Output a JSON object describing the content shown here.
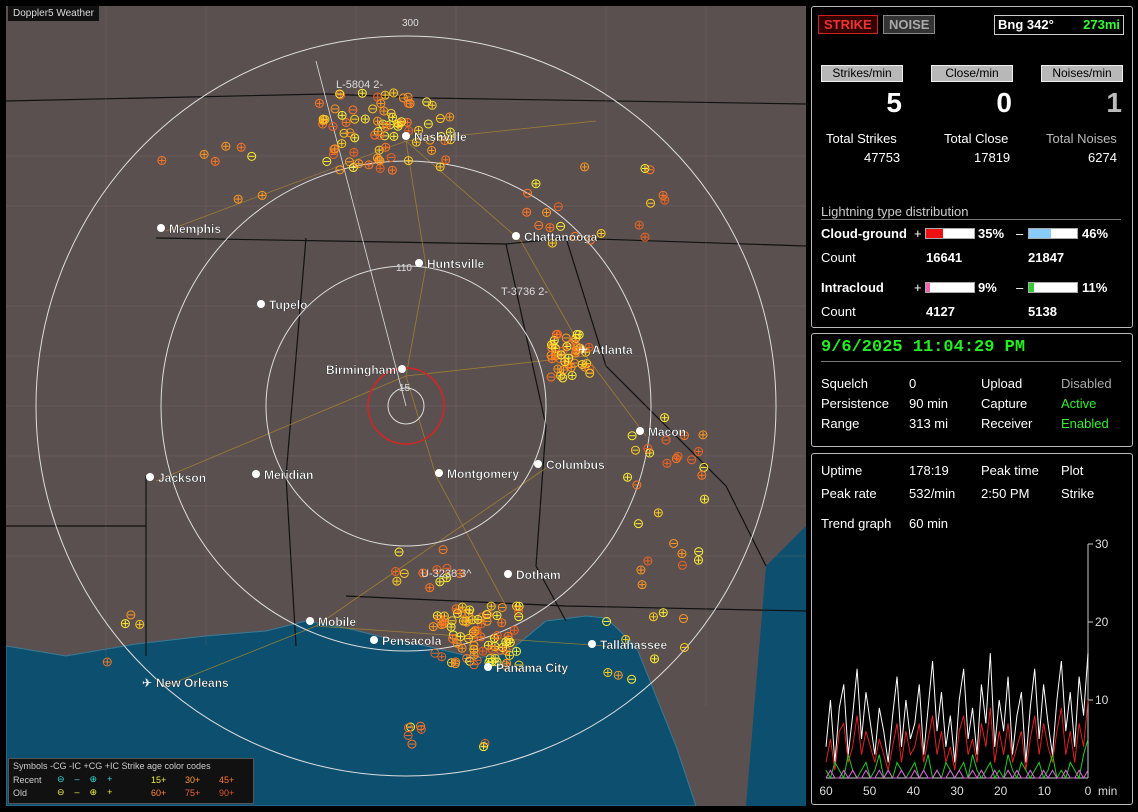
{
  "map": {
    "title": "Doppler5 Weather",
    "range_labels": [
      "300",
      "110",
      "15"
    ],
    "cities": [
      "Nashville",
      "Memphis",
      "Chattanooga",
      "Huntsville",
      "Tupelo",
      "Atlanta",
      "Birmingham",
      "Macon",
      "Jackson",
      "Meridian",
      "Montgomery",
      "Columbus",
      "Dotham",
      "Mobile",
      "Pensacola",
      "Tallahassee",
      "Panama City",
      "New Orleans"
    ],
    "tags": [
      "L-5804  2-",
      "T-3736  2-",
      "U-3238  3^"
    ],
    "legend": {
      "r1": "Symbols -CG   -IC  +CG  +IC   Strike age color codes",
      "recent": "Recent",
      "old": "Old",
      "recent_codes": [
        "15+",
        "30+",
        "45+"
      ],
      "old_codes": [
        "60+",
        "75+",
        "90+"
      ]
    }
  },
  "top": {
    "strike_button": "STRIKE",
    "noise_button": "NOISE",
    "bearing": "Bng 342°",
    "distance": "273mi"
  },
  "rates": {
    "labels": [
      "Strikes/min",
      "Close/min",
      "Noises/min"
    ],
    "values": [
      "5",
      "0",
      "1"
    ],
    "total_labels": [
      "Total Strikes",
      "Total Close",
      "Total Noises"
    ],
    "totals": [
      "47753",
      "17819",
      "6274"
    ]
  },
  "distribution": {
    "title": "Lightning type distribution",
    "cg_label": "Cloud-ground",
    "ic_label": "Intracloud",
    "count_label": "Count",
    "cg_pos_pct": "35%",
    "cg_neg_pct": "46%",
    "cg_pos_count": "16641",
    "cg_neg_count": "21847",
    "ic_pos_pct": "9%",
    "ic_neg_pct": "11%",
    "ic_pos_count": "4127",
    "ic_neg_count": "5138",
    "plus": "+",
    "minus": "–",
    "fills": {
      "cg_pos": 0.35,
      "cg_neg": 0.46,
      "ic_pos": 0.09,
      "ic_neg": 0.11
    }
  },
  "status": {
    "datetime": "9/6/2025 11:04:29 PM",
    "squelch_label": "Squelch",
    "squelch": "0",
    "persistence_label": "Persistence",
    "persistence": "90 min",
    "range_label": "Range",
    "range": "313 mi",
    "upload_label": "Upload",
    "upload": "Disabled",
    "capture_label": "Capture",
    "capture": "Active",
    "receiver_label": "Receiver",
    "receiver": "Enabled"
  },
  "stats": {
    "uptime_label": "Uptime",
    "uptime": "178:19",
    "peaktime_label": "Peak time",
    "peaktime": "2:50 PM",
    "plot_label": "Plot",
    "plot": "Strike",
    "peakrate_label": "Peak rate",
    "peakrate": "532/min",
    "trend_label": "Trend graph",
    "trend": "60 min"
  },
  "chart_data": {
    "type": "line",
    "x_ticks": [
      "60",
      "50",
      "40",
      "30",
      "20",
      "10",
      "0"
    ],
    "x_unit": "min",
    "y_ticks": [
      "30",
      "20",
      "10"
    ],
    "ylim": [
      0,
      30
    ],
    "series": [
      {
        "color": "#ffffff",
        "values": [
          4,
          10,
          2,
          9,
          12,
          3,
          8,
          14,
          5,
          11,
          7,
          3,
          9,
          6,
          2,
          8,
          13,
          4,
          10,
          5,
          7,
          12,
          3,
          9,
          15,
          6,
          11,
          4,
          8,
          2,
          10,
          14,
          5,
          9,
          3,
          12,
          7,
          16,
          4,
          10,
          6,
          13,
          3,
          8,
          11,
          2,
          9,
          14,
          5,
          12,
          7,
          3,
          10,
          15,
          6,
          11,
          4,
          13,
          8,
          16
        ]
      },
      {
        "color": "#dd2222",
        "values": [
          2,
          5,
          1,
          6,
          7,
          2,
          4,
          8,
          3,
          6,
          4,
          2,
          5,
          3,
          1,
          4,
          7,
          2,
          6,
          3,
          4,
          7,
          2,
          5,
          8,
          3,
          6,
          2,
          4,
          1,
          6,
          8,
          3,
          5,
          2,
          7,
          4,
          9,
          2,
          6,
          3,
          7,
          2,
          4,
          6,
          1,
          5,
          8,
          3,
          7,
          4,
          2,
          6,
          9,
          3,
          6,
          2,
          7,
          4,
          10
        ]
      },
      {
        "color": "#22cc22",
        "values": [
          1,
          0,
          2,
          1,
          0,
          3,
          1,
          0,
          1,
          2,
          0,
          1,
          3,
          0,
          1,
          0,
          2,
          1,
          0,
          1,
          2,
          0,
          1,
          3,
          0,
          1,
          0,
          2,
          1,
          0,
          1,
          2,
          0,
          3,
          1,
          0,
          1,
          2,
          0,
          1,
          0,
          3,
          1,
          0,
          2,
          1,
          0,
          1,
          2,
          0,
          1,
          3,
          0,
          1,
          0,
          2,
          1,
          0,
          3,
          5
        ]
      },
      {
        "color": "#dd66dd",
        "values": [
          0,
          1,
          0,
          0,
          1,
          0,
          1,
          0,
          0,
          1,
          0,
          0,
          1,
          0,
          1,
          0,
          0,
          1,
          0,
          0,
          1,
          0,
          1,
          0,
          0,
          1,
          0,
          0,
          1,
          0,
          1,
          0,
          0,
          1,
          0,
          1,
          0,
          0,
          1,
          0,
          0,
          1,
          0,
          1,
          0,
          0,
          1,
          0,
          0,
          1,
          0,
          1,
          0,
          0,
          1,
          0,
          0,
          1,
          0,
          1
        ]
      }
    ]
  }
}
